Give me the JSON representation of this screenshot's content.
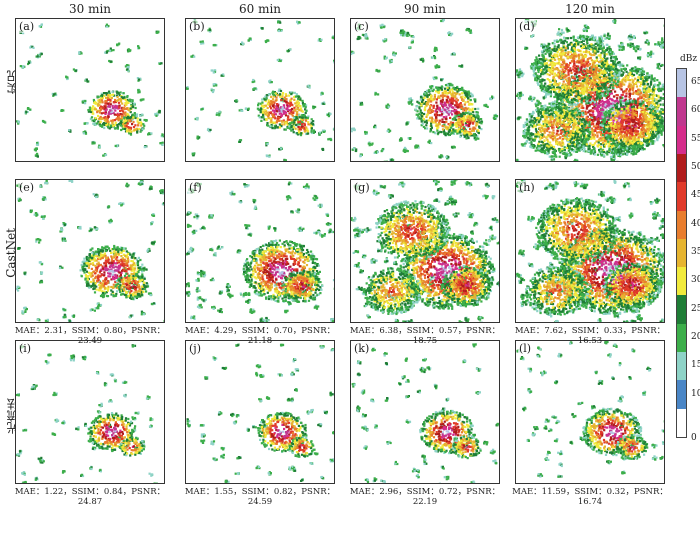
{
  "column_titles": [
    "30  min",
    "60  min",
    "90  min",
    "120  min"
  ],
  "row_labels": [
    "实况",
    "CastNet",
    "光流法"
  ],
  "panels": [
    {
      "label": "(a)",
      "intensity": 0.18
    },
    {
      "label": "(b)",
      "intensity": 0.2
    },
    {
      "label": "(c)",
      "intensity": 0.35
    },
    {
      "label": "(d)",
      "intensity": 0.95
    },
    {
      "label": "(e)",
      "intensity": 0.35
    },
    {
      "label": "(f)",
      "intensity": 0.5
    },
    {
      "label": "(g)",
      "intensity": 0.7
    },
    {
      "label": "(h)",
      "intensity": 0.85
    },
    {
      "label": "(i)",
      "intensity": 0.18
    },
    {
      "label": "(j)",
      "intensity": 0.2
    },
    {
      "label": "(k)",
      "intensity": 0.25
    },
    {
      "label": "(l)",
      "intensity": 0.3
    }
  ],
  "metrics": {
    "castnet": [
      "MAE：2.31，SSIM：0.80，PSNR：23.49",
      "MAE：4.29，SSIM：0.70，PSNR：21.18",
      "MAE：6.38，SSIM：0.57，PSNR：18.75",
      "MAE：7.62，SSIM：0.33，PSNR：16.53"
    ],
    "optical_flow": [
      "MAE：1.22，SSIM：0.84，PSNR：24.87",
      "MAE：1.55，SSIM：0.82，PSNR：24.59",
      "MAE：2.96，SSIM：0.72，PSNR：22.19",
      "MAE：11.59，SSIM：0.32，PSNR：16.74"
    ]
  },
  "colorbar": {
    "unit": "dBz",
    "ticks": [
      "65",
      "60",
      "55",
      "50",
      "45",
      "40",
      "35",
      "30",
      "25",
      "20",
      "15",
      "10",
      "0"
    ],
    "colors": [
      "#b7c4e4",
      "#c0388f",
      "#d52d8b",
      "#b01c1c",
      "#e03a2a",
      "#e87d2e",
      "#e6b430",
      "#f1ea3c",
      "#1f7d36",
      "#3cae4a",
      "#8ed3c7",
      "#4a86c6",
      "#ffffff"
    ]
  }
}
